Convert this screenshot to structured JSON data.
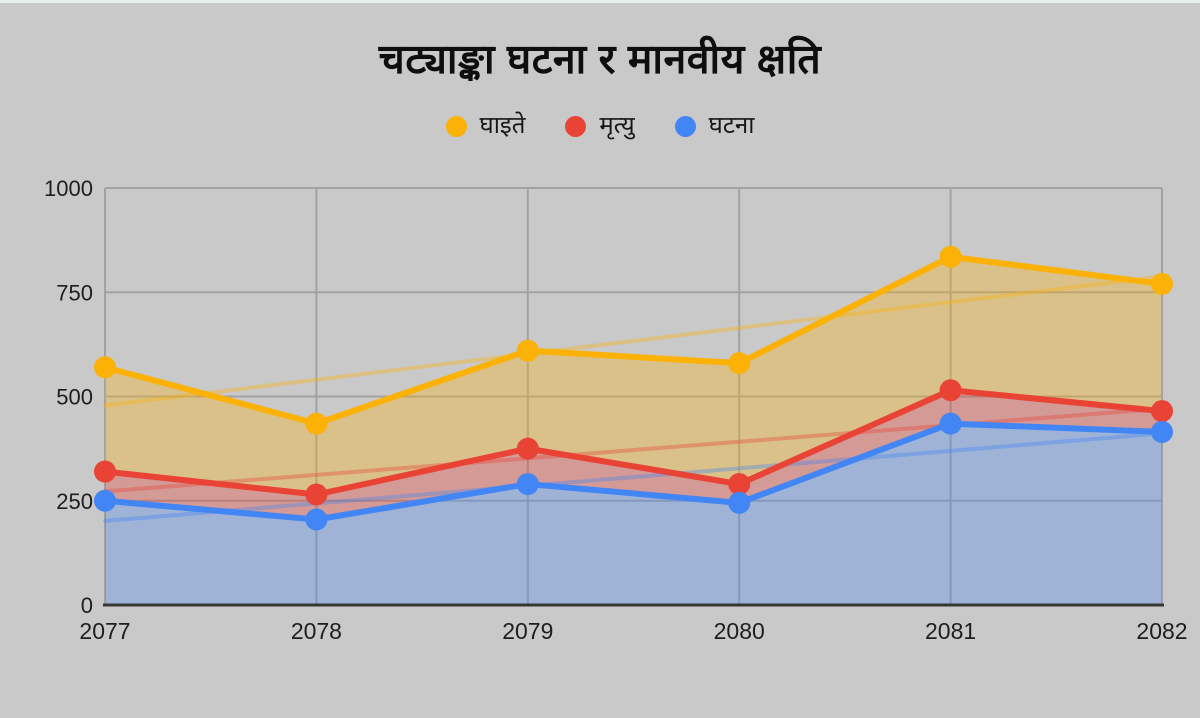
{
  "title": "चट्याङ्का घटना र मानवीय क्षति",
  "colors": {
    "background": "#c9c9c9",
    "top_edge_strip": "#e9efec",
    "grid": "#a2a2a2",
    "axis_baseline": "#373737",
    "tick_text": "#1e1e1e",
    "title_text": "#0e0e0e"
  },
  "legend": [
    {
      "label": "घाइते",
      "color": "#FBB105"
    },
    {
      "label": "मृत्यु",
      "color": "#E94335"
    },
    {
      "label": "घटना",
      "color": "#4285F4"
    }
  ],
  "chart_data": {
    "type": "area",
    "title": "चट्याङ्का घटना र मानवीय क्षति",
    "x": [
      2077,
      2078,
      2079,
      2080,
      2081,
      2082
    ],
    "x_tick_labels": [
      "2077",
      "2078",
      "2079",
      "2080",
      "2081",
      "2082"
    ],
    "series": [
      {
        "name": "घाइते",
        "color": "#FBB105",
        "values": [
          570,
          435,
          610,
          580,
          835,
          770
        ]
      },
      {
        "name": "मृत्यु",
        "color": "#E94335",
        "values": [
          320,
          265,
          375,
          290,
          515,
          465
        ]
      },
      {
        "name": "घटना",
        "color": "#4285F4",
        "values": [
          250,
          205,
          290,
          245,
          435,
          415
        ]
      }
    ],
    "ylim": [
      0,
      1000
    ],
    "yticks": [
      0,
      250,
      500,
      750,
      1000
    ],
    "grid": true,
    "legend_position": "top-center",
    "has_linear_trendline_per_series": true,
    "area_style": "each series filled as semi-transparent band down to the next lower series / baseline",
    "point_markers": "filled circles at every data point"
  }
}
